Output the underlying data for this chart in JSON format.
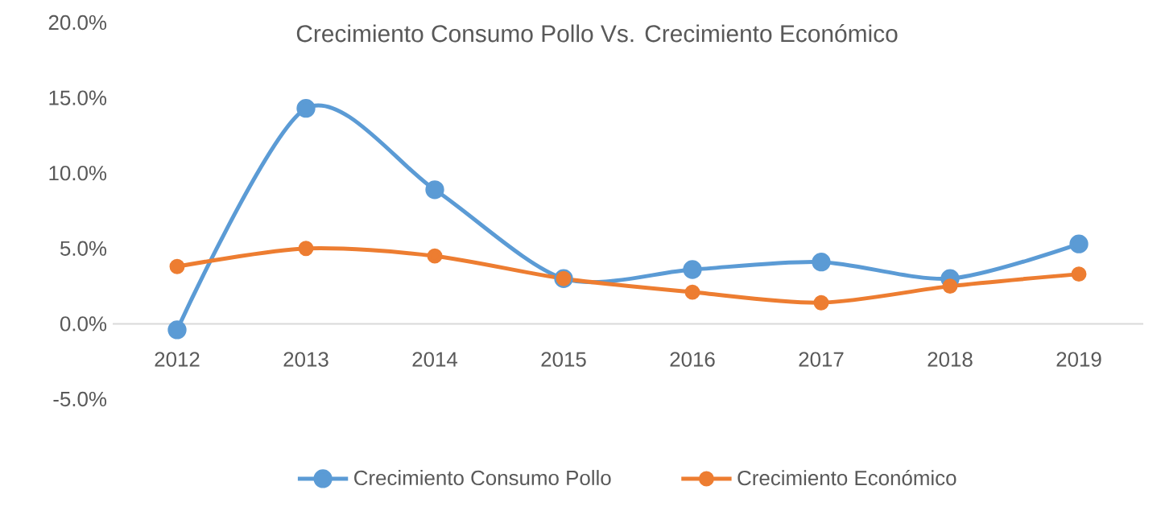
{
  "chart_data": {
    "type": "line",
    "title": "Crecimiento Consumo Pollo Vs. Crecimiento Económico",
    "categories": [
      "2012",
      "2013",
      "2014",
      "2015",
      "2016",
      "2017",
      "2018",
      "2019"
    ],
    "series": [
      {
        "name": "Crecimiento Consumo Pollo",
        "color": "#5b9bd5",
        "values": [
          -0.4,
          14.3,
          8.9,
          3.0,
          3.6,
          4.1,
          3.0,
          5.3
        ]
      },
      {
        "name": "Crecimiento Económico",
        "color": "#ed7d31",
        "values": [
          3.8,
          5.0,
          4.5,
          3.0,
          2.1,
          1.4,
          2.5,
          3.3
        ]
      }
    ],
    "ylim": [
      -5,
      20
    ],
    "yticks": [
      {
        "value": -5,
        "label": "-5.0%"
      },
      {
        "value": 0,
        "label": "0.0%"
      },
      {
        "value": 5,
        "label": "5.0%"
      },
      {
        "value": 10,
        "label": "10.0%"
      },
      {
        "value": 15,
        "label": "15.0%"
      },
      {
        "value": 20,
        "label": "20.0%"
      }
    ],
    "grid": false,
    "legend": "bottom",
    "marker": "circle",
    "line_style": "solid"
  }
}
